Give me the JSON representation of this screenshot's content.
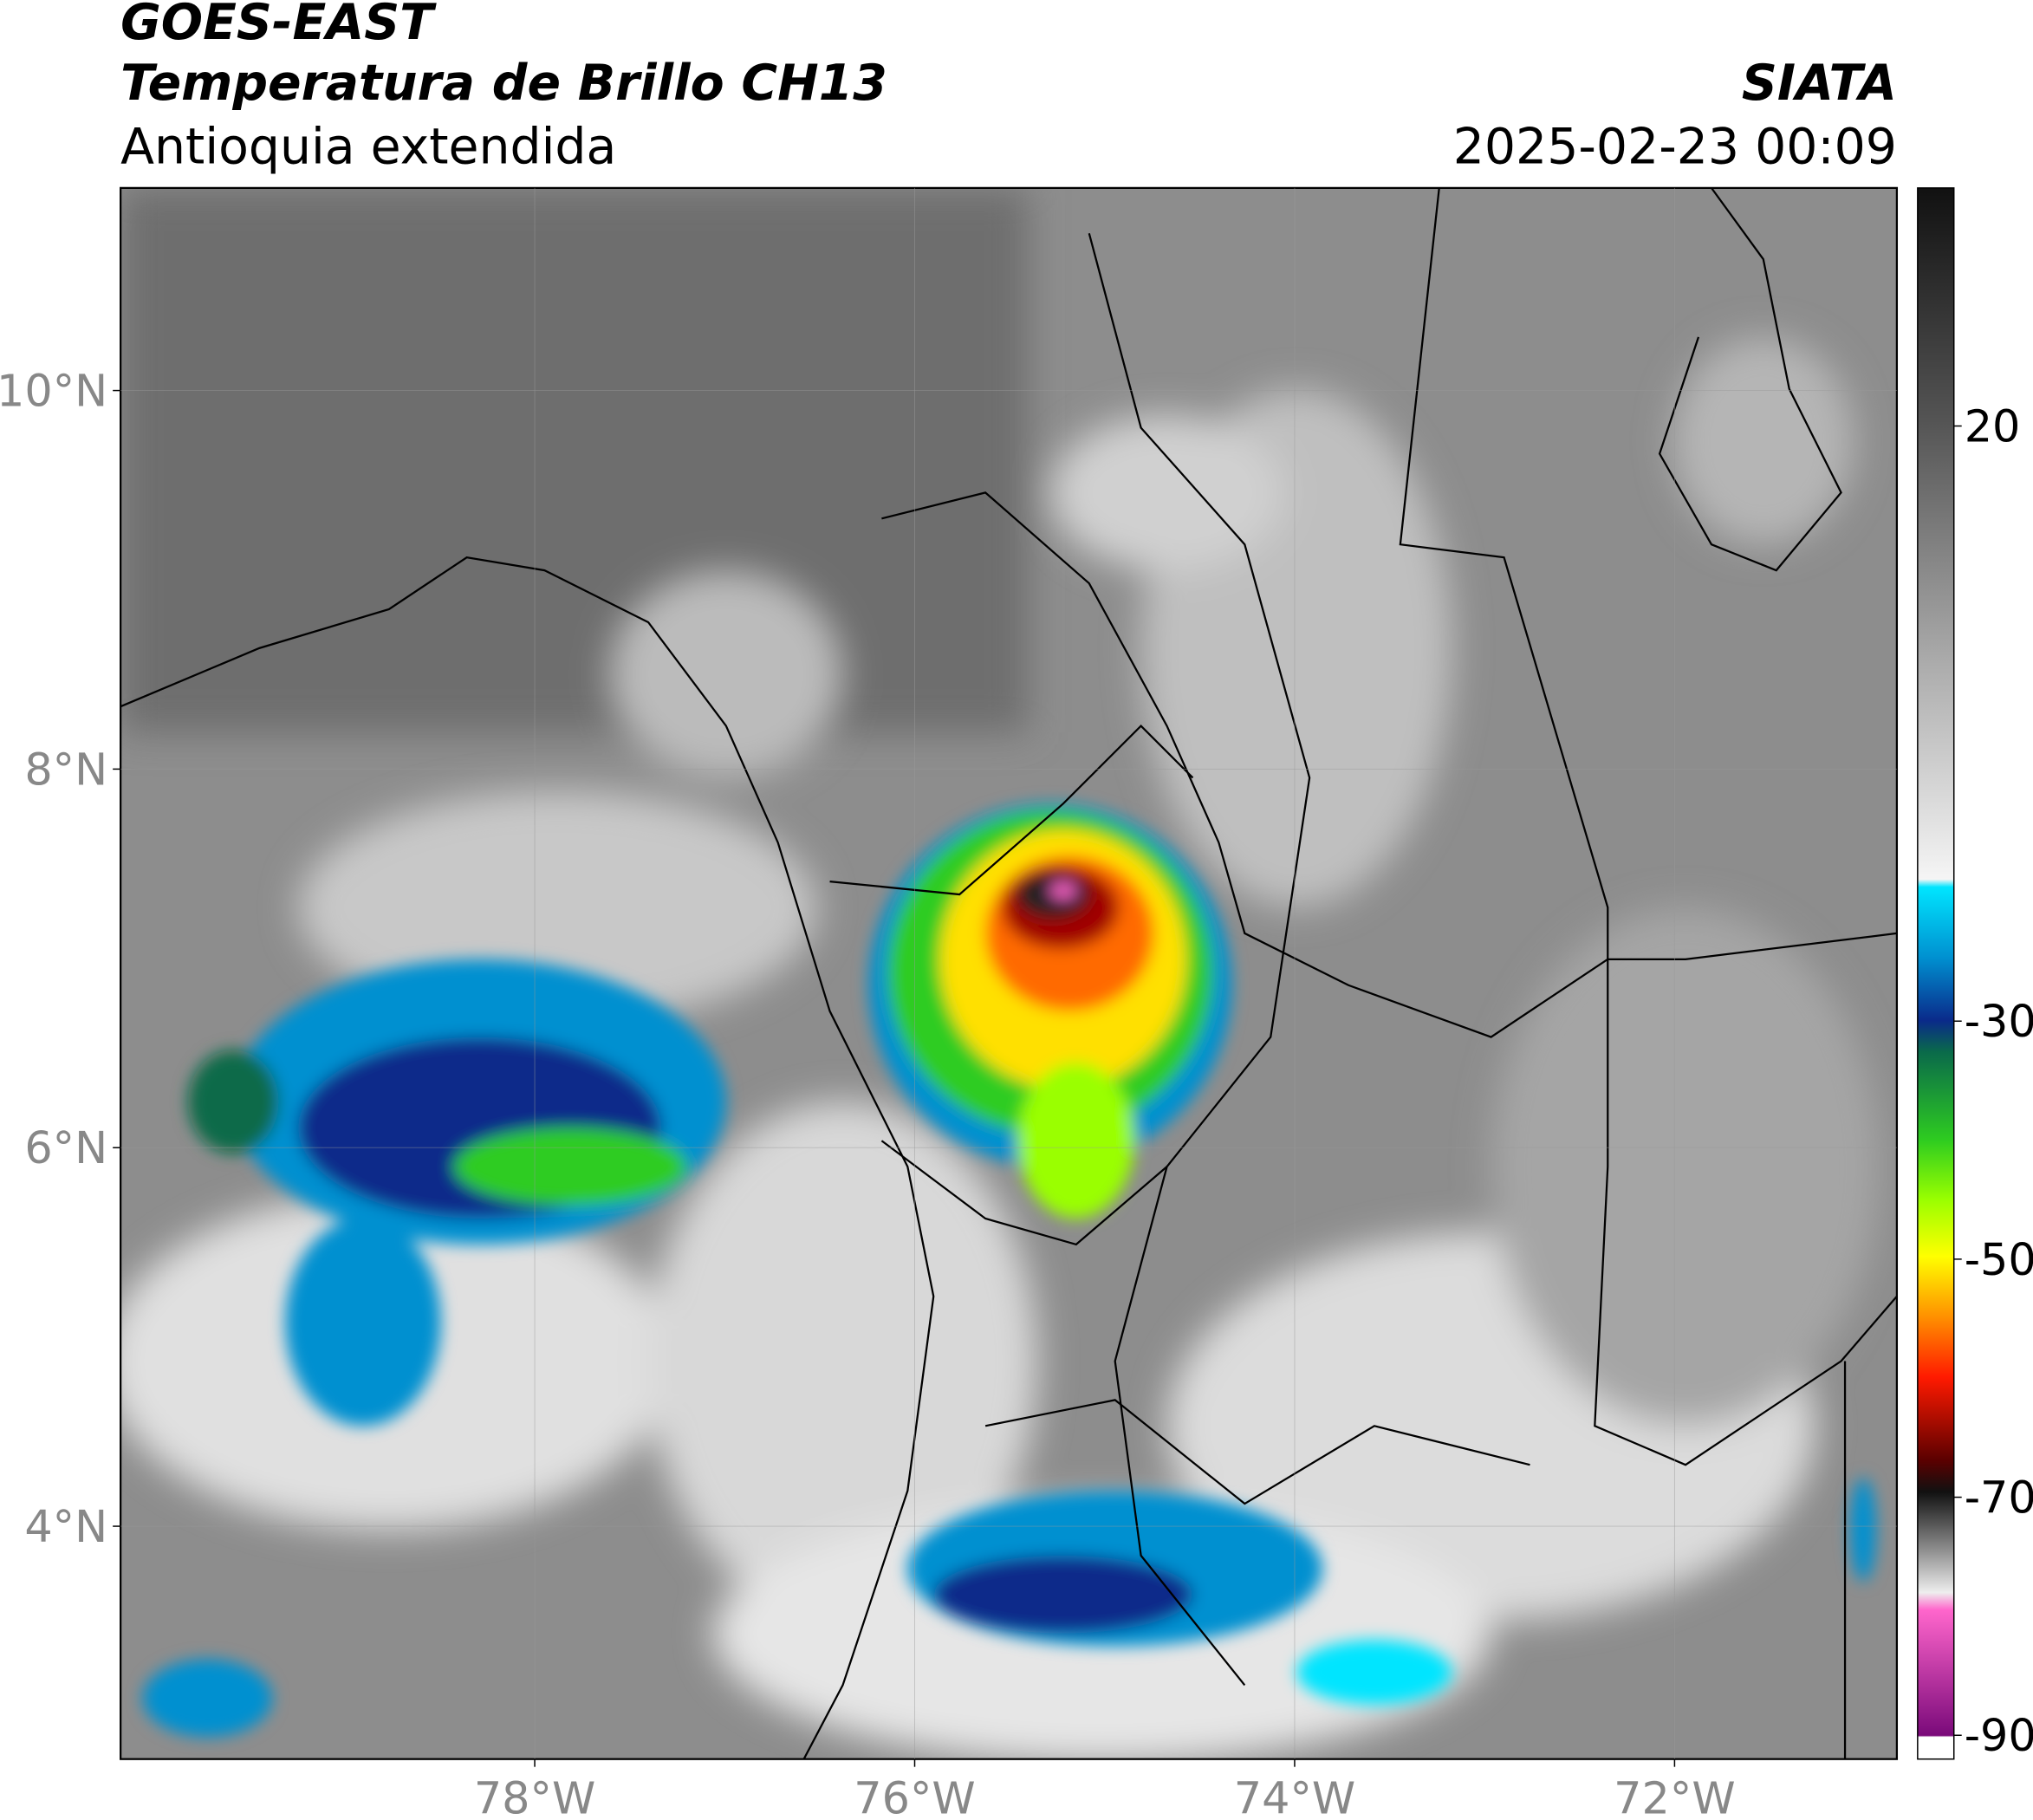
{
  "header": {
    "title": "GOES-EAST",
    "subtitle": "Temperatura de Brillo CH13",
    "region": "Antioquia extendida",
    "source": "SIATA",
    "datetime": "2025-02-23 00:09"
  },
  "map": {
    "xlim": [
      -80.18,
      -70.83
    ],
    "ylim": [
      2.77,
      11.07
    ],
    "xticks": [
      {
        "value": -78,
        "label": "78°W"
      },
      {
        "value": -76,
        "label": "76°W"
      },
      {
        "value": -74,
        "label": "74°W"
      },
      {
        "value": -72,
        "label": "72°W"
      }
    ],
    "yticks": [
      {
        "value": 10,
        "label": "10°N"
      },
      {
        "value": 8,
        "label": "8°N"
      },
      {
        "value": 6,
        "label": "6°N"
      },
      {
        "value": 4,
        "label": "4°N"
      }
    ]
  },
  "colorbar": {
    "lim": [
      -92,
      40
    ],
    "ticks": [
      20,
      -30,
      -50,
      -70,
      -90
    ]
  }
}
